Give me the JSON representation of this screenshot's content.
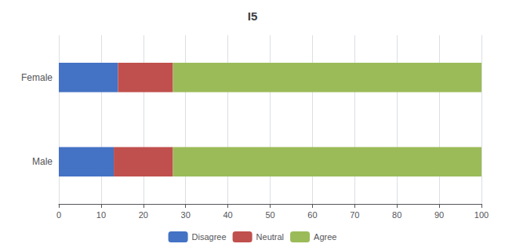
{
  "chart_data": {
    "type": "bar",
    "orientation": "horizontal",
    "stacked": true,
    "title": "I5",
    "categories": [
      "Female",
      "Male"
    ],
    "series": [
      {
        "name": "Disagree",
        "color": "#4472C4",
        "values": [
          14,
          13
        ]
      },
      {
        "name": "Neutral",
        "color": "#C0504D",
        "values": [
          13,
          14
        ]
      },
      {
        "name": "Agree",
        "color": "#9BBB59",
        "values": [
          73,
          73
        ]
      }
    ],
    "xlim": [
      0,
      100
    ],
    "xticks": [
      0,
      10,
      20,
      30,
      40,
      50,
      60,
      70,
      80,
      90,
      100
    ],
    "grid": true,
    "legend": "bottom"
  }
}
